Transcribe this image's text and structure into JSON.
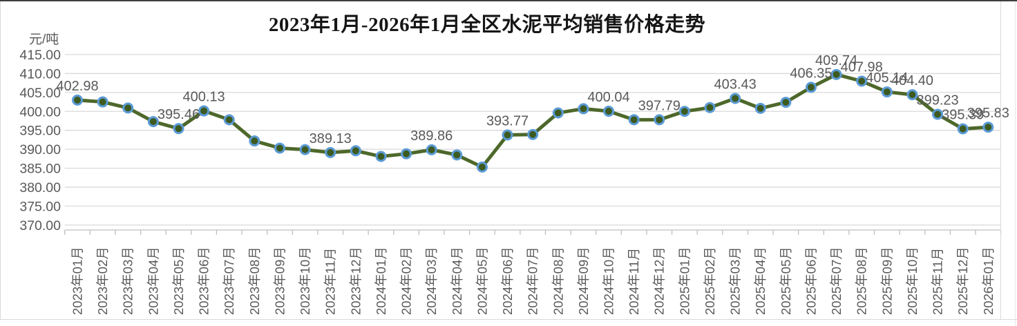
{
  "chart": {
    "colors": {
      "line": "#4d682a",
      "marker_fill": "#3d5a20",
      "marker_ring": "#5b9bd5",
      "grid": "#d9d9d9",
      "axis": "#bfbfbf",
      "label_text": "#595959",
      "title_text": "#151515"
    }
  },
  "chart_data": {
    "type": "line",
    "title": "2023年1月-2026年1月全区水泥平均销售价格走势",
    "xlabel": "",
    "ylabel": "元/吨",
    "ylim": [
      370,
      415
    ],
    "y_tick_step": 5,
    "grid": "horizontal",
    "legend": "none",
    "y_ticks": [
      "415.00",
      "410.00",
      "405.00",
      "400.00",
      "395.00",
      "390.00",
      "385.00",
      "380.00",
      "375.00",
      "370.00"
    ],
    "categories": [
      "2023年01月",
      "2023年02月",
      "2023年03月",
      "2023年04月",
      "2023年05月",
      "2023年06月",
      "2023年07月",
      "2023年08月",
      "2023年09月",
      "2023年10月",
      "2023年11月",
      "2023年12月",
      "2024年01月",
      "2024年02月",
      "2024年03月",
      "2024年04月",
      "2024年05月",
      "2024年06月",
      "2024年07月",
      "2024年08月",
      "2024年09月",
      "2024年10月",
      "2024年11月",
      "2024年12月",
      "2025年01月",
      "2025年02月",
      "2025年03月",
      "2025年04月",
      "2025年05月",
      "2025年06月",
      "2025年07月",
      "2025年08月",
      "2025年09月",
      "2025年10月",
      "2025年11月",
      "2025年12月",
      "2026年01月"
    ],
    "series": [
      {
        "name": "全区水泥平均销售价格",
        "values": [
          402.98,
          402.5,
          400.9,
          397.3,
          395.46,
          400.13,
          397.8,
          392.2,
          390.3,
          389.9,
          389.13,
          389.6,
          388.1,
          388.8,
          389.86,
          388.5,
          385.3,
          393.77,
          393.9,
          399.6,
          400.7,
          400.04,
          397.8,
          397.79,
          400.0,
          401.0,
          403.43,
          400.8,
          402.4,
          406.35,
          409.74,
          407.98,
          405.14,
          404.4,
          399.23,
          395.39,
          395.83
        ],
        "point_labels": [
          "402.98",
          null,
          null,
          null,
          "395.46",
          "400.13",
          null,
          null,
          null,
          null,
          "389.13",
          null,
          null,
          null,
          "389.86",
          null,
          null,
          "393.77",
          null,
          null,
          null,
          "400.04",
          null,
          "397.79",
          null,
          null,
          "403.43",
          null,
          null,
          "406.35",
          "409.74",
          "407.98",
          "405.14",
          "404.40",
          "399.23",
          "395.39",
          "395.83"
        ]
      }
    ]
  }
}
